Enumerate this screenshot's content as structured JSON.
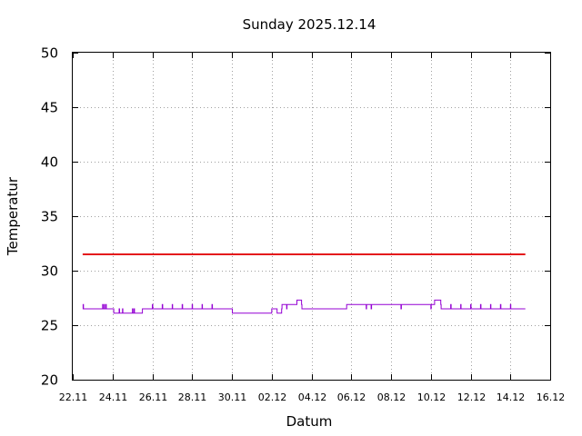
{
  "chart_data": {
    "type": "line",
    "title": "Sunday 2025.12.14",
    "xlabel": "Datum",
    "ylabel": "Temperatur",
    "ylim": [
      20,
      50
    ],
    "yticks": [
      20,
      25,
      30,
      35,
      40,
      45,
      50
    ],
    "xlim": [
      "2025-11-22",
      "2025-12-16"
    ],
    "xtick_labels": [
      "22.11",
      "24.11",
      "26.11",
      "28.11",
      "30.11",
      "02.12",
      "04.12",
      "06.12",
      "08.12",
      "10.12",
      "12.12",
      "14.12",
      "16.12"
    ],
    "grid": true,
    "series": [
      {
        "color": "#e41a1c",
        "x": [
          "2025-11-22T12:00",
          "2025-12-14T18:00"
        ],
        "y": [
          31.5,
          31.5
        ]
      },
      {
        "color": "#9400d3",
        "x": [
          "2025-11-22T12:00",
          "2025-11-22T12:30",
          "2025-11-22T13:00",
          "2025-11-23T12:00",
          "2025-11-23T12:30",
          "2025-11-23T14:00",
          "2025-11-23T14:30",
          "2025-11-23T16:00",
          "2025-11-23T16:30",
          "2025-11-24T01:00",
          "2025-11-24T01:30",
          "2025-11-24T08:00",
          "2025-11-24T08:30",
          "2025-11-24T12:00",
          "2025-11-24T12:30",
          "2025-11-25T00:00",
          "2025-11-25T00:30",
          "2025-11-25T02:00",
          "2025-11-25T02:30",
          "2025-11-25T12:00",
          "2025-11-25T23:00",
          "2025-11-26T00:00",
          "2025-11-26T00:30",
          "2025-11-26T12:00",
          "2025-11-26T12:30",
          "2025-11-27T00:00",
          "2025-11-27T00:30",
          "2025-11-27T12:00",
          "2025-11-27T12:30",
          "2025-11-28T00:00",
          "2025-11-28T00:30",
          "2025-11-28T12:00",
          "2025-11-28T12:30",
          "2025-11-29T00:00",
          "2025-11-29T00:30",
          "2025-11-30T00:00",
          "2025-11-30T00:30",
          "2025-12-02T00:00",
          "2025-12-02T06:00",
          "2025-12-02T06:30",
          "2025-12-02T12:00",
          "2025-12-02T12:30",
          "2025-12-02T18:00",
          "2025-12-02T18:30",
          "2025-12-03T06:00",
          "2025-12-03T06:30",
          "2025-12-03T12:00",
          "2025-12-03T12:30",
          "2025-12-03T18:00",
          "2025-12-04T00:00",
          "2025-12-05T18:00",
          "2025-12-05T18:30",
          "2025-12-06T18:00",
          "2025-12-06T18:30",
          "2025-12-07T00:00",
          "2025-12-07T00:30",
          "2025-12-08T12:00",
          "2025-12-08T12:30",
          "2025-12-10T00:00",
          "2025-12-10T00:30",
          "2025-12-10T04:00",
          "2025-12-10T04:30",
          "2025-12-10T12:00",
          "2025-12-10T12:30",
          "2025-12-11T00:00",
          "2025-12-11T00:30",
          "2025-12-11T12:00",
          "2025-12-11T12:30",
          "2025-12-12T00:00",
          "2025-12-12T00:30",
          "2025-12-12T12:00",
          "2025-12-12T12:30",
          "2025-12-13T00:00",
          "2025-12-13T00:30",
          "2025-12-13T12:00",
          "2025-12-13T12:30",
          "2025-12-14T00:00",
          "2025-12-14T00:30",
          "2025-12-14T12:00",
          "2025-12-14T18:00"
        ],
        "y": [
          26.5,
          26.9,
          26.5,
          26.9,
          26.5,
          26.9,
          26.5,
          26.9,
          26.5,
          26.5,
          26.1,
          26.5,
          26.1,
          26.5,
          26.1,
          26.5,
          26.1,
          26.5,
          26.1,
          26.5,
          26.5,
          26.9,
          26.5,
          26.9,
          26.5,
          26.9,
          26.5,
          26.9,
          26.5,
          26.9,
          26.5,
          26.9,
          26.5,
          26.9,
          26.5,
          26.5,
          26.1,
          26.5,
          26.5,
          26.1,
          26.5,
          26.9,
          26.5,
          26.9,
          26.9,
          27.3,
          26.9,
          26.5,
          26.5,
          26.5,
          26.5,
          26.9,
          26.5,
          26.9,
          26.5,
          26.9,
          26.5,
          26.9,
          26.5,
          26.9,
          26.9,
          27.3,
          26.9,
          26.5,
          26.9,
          26.5,
          26.9,
          26.5,
          26.9,
          26.5,
          26.9,
          26.5,
          26.9,
          26.5,
          26.9,
          26.5,
          26.9,
          26.5,
          26.5,
          26.5
        ]
      }
    ]
  }
}
